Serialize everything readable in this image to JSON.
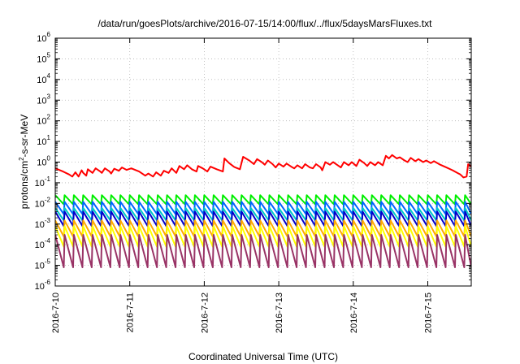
{
  "chart_data": {
    "type": "line",
    "title": "/data/run/goesPlots/archive/2016-07-15/14:00/flux/../flux/5daysMarsFluxes.txt",
    "xlabel": "Coordinated Universal Time (UTC)",
    "ylabel": {
      "prefix": "protons/cm",
      "superscript": "2",
      "suffix": "-s-sr-MeV"
    },
    "y_scale": "log",
    "ylim": [
      1e-06,
      1000000.0
    ],
    "y_ticks": [
      {
        "mantissa": "10",
        "exponent": "-6",
        "value": 1e-06
      },
      {
        "mantissa": "10",
        "exponent": "-5",
        "value": 1e-05
      },
      {
        "mantissa": "10",
        "exponent": "-4",
        "value": 0.0001
      },
      {
        "mantissa": "10",
        "exponent": "-3",
        "value": 0.001
      },
      {
        "mantissa": "10",
        "exponent": "-2",
        "value": 0.01
      },
      {
        "mantissa": "10",
        "exponent": "-1",
        "value": 0.1
      },
      {
        "mantissa": "10",
        "exponent": "0",
        "value": 1
      },
      {
        "mantissa": "10",
        "exponent": "1",
        "value": 10.0
      },
      {
        "mantissa": "10",
        "exponent": "2",
        "value": 100.0
      },
      {
        "mantissa": "10",
        "exponent": "3",
        "value": 1000.0
      },
      {
        "mantissa": "10",
        "exponent": "4",
        "value": 10000.0
      },
      {
        "mantissa": "10",
        "exponent": "5",
        "value": 100000.0
      },
      {
        "mantissa": "10",
        "exponent": "6",
        "value": 1000000.0
      }
    ],
    "x_scale": "time",
    "xlim": [
      "2016-07-10T00:00",
      "2016-07-15T14:00"
    ],
    "x_ticks": [
      {
        "label": "2016-7-10",
        "value": "2016-07-10T00:00"
      },
      {
        "label": "2016-7-11",
        "value": "2016-07-11T00:00"
      },
      {
        "label": "2016-7-12",
        "value": "2016-07-12T00:00"
      },
      {
        "label": "2016-7-13",
        "value": "2016-07-13T00:00"
      },
      {
        "label": "2016-7-14",
        "value": "2016-07-14T00:00"
      },
      {
        "label": "2016-7-15",
        "value": "2016-07-15T00:00"
      }
    ],
    "grid": true,
    "legend": "none",
    "series": [
      {
        "color": "#ff0000",
        "points": [
          [
            "2016-07-10T00:00",
            0.5
          ],
          [
            "2016-07-10T02:30",
            0.35
          ],
          [
            "2016-07-10T04:30",
            0.25
          ],
          [
            "2016-07-10T05:30",
            0.2
          ],
          [
            "2016-07-10T06:30",
            0.32
          ],
          [
            "2016-07-10T07:30",
            0.2
          ],
          [
            "2016-07-10T08:30",
            0.4
          ],
          [
            "2016-07-10T09:00",
            0.3
          ],
          [
            "2016-07-10T10:00",
            0.22
          ],
          [
            "2016-07-10T10:30",
            0.45
          ],
          [
            "2016-07-10T12:00",
            0.3
          ],
          [
            "2016-07-10T13:00",
            0.5
          ],
          [
            "2016-07-10T14:30",
            0.35
          ],
          [
            "2016-07-10T15:00",
            0.3
          ],
          [
            "2016-07-10T16:00",
            0.5
          ],
          [
            "2016-07-10T17:30",
            0.35
          ],
          [
            "2016-07-10T18:00",
            0.28
          ],
          [
            "2016-07-10T19:00",
            0.48
          ],
          [
            "2016-07-10T20:30",
            0.38
          ],
          [
            "2016-07-10T21:30",
            0.55
          ],
          [
            "2016-07-10T23:00",
            0.42
          ],
          [
            "2016-07-11T00:30",
            0.5
          ],
          [
            "2016-07-11T03:00",
            0.35
          ],
          [
            "2016-07-11T05:00",
            0.22
          ],
          [
            "2016-07-11T06:00",
            0.28
          ],
          [
            "2016-07-11T07:30",
            0.2
          ],
          [
            "2016-07-11T08:30",
            0.32
          ],
          [
            "2016-07-11T10:00",
            0.22
          ],
          [
            "2016-07-11T11:00",
            0.38
          ],
          [
            "2016-07-11T12:30",
            0.3
          ],
          [
            "2016-07-11T13:30",
            0.5
          ],
          [
            "2016-07-11T15:00",
            0.3
          ],
          [
            "2016-07-11T16:00",
            0.65
          ],
          [
            "2016-07-11T17:30",
            0.45
          ],
          [
            "2016-07-11T18:30",
            0.7
          ],
          [
            "2016-07-11T20:00",
            0.45
          ],
          [
            "2016-07-11T21:30",
            0.35
          ],
          [
            "2016-07-11T22:00",
            0.65
          ],
          [
            "2016-07-11T23:30",
            0.5
          ],
          [
            "2016-07-12T01:00",
            0.35
          ],
          [
            "2016-07-12T02:00",
            0.6
          ],
          [
            "2016-07-12T04:00",
            0.45
          ],
          [
            "2016-07-12T06:00",
            0.35
          ],
          [
            "2016-07-12T06:30",
            1.5
          ],
          [
            "2016-07-12T08:00",
            0.9
          ],
          [
            "2016-07-12T09:30",
            0.6
          ],
          [
            "2016-07-12T10:00",
            0.55
          ],
          [
            "2016-07-12T11:30",
            0.45
          ],
          [
            "2016-07-12T12:30",
            1.8
          ],
          [
            "2016-07-12T14:30",
            1.2
          ],
          [
            "2016-07-12T16:00",
            0.8
          ],
          [
            "2016-07-12T17:00",
            1.4
          ],
          [
            "2016-07-12T18:30",
            1.0
          ],
          [
            "2016-07-12T19:30",
            0.75
          ],
          [
            "2016-07-12T20:30",
            1.2
          ],
          [
            "2016-07-12T22:00",
            0.8
          ],
          [
            "2016-07-12T23:00",
            0.55
          ],
          [
            "2016-07-13T00:00",
            0.85
          ],
          [
            "2016-07-13T01:30",
            0.6
          ],
          [
            "2016-07-13T02:30",
            0.85
          ],
          [
            "2016-07-13T04:00",
            0.6
          ],
          [
            "2016-07-13T05:00",
            0.5
          ],
          [
            "2016-07-13T06:00",
            0.7
          ],
          [
            "2016-07-13T07:30",
            0.5
          ],
          [
            "2016-07-13T08:30",
            0.8
          ],
          [
            "2016-07-13T10:00",
            0.55
          ],
          [
            "2016-07-13T11:00",
            0.5
          ],
          [
            "2016-07-13T12:00",
            0.8
          ],
          [
            "2016-07-13T13:30",
            0.55
          ],
          [
            "2016-07-13T14:00",
            0.4
          ],
          [
            "2016-07-13T15:00",
            1.0
          ],
          [
            "2016-07-13T16:30",
            0.75
          ],
          [
            "2016-07-13T17:30",
            1.0
          ],
          [
            "2016-07-13T19:00",
            0.7
          ],
          [
            "2016-07-13T20:00",
            0.55
          ],
          [
            "2016-07-13T21:00",
            1.0
          ],
          [
            "2016-07-13T22:30",
            0.7
          ],
          [
            "2016-07-13T23:30",
            1.0
          ],
          [
            "2016-07-14T01:00",
            0.65
          ],
          [
            "2016-07-14T02:00",
            1.3
          ],
          [
            "2016-07-14T03:30",
            0.9
          ],
          [
            "2016-07-14T04:30",
            0.65
          ],
          [
            "2016-07-14T05:30",
            1.0
          ],
          [
            "2016-07-14T07:00",
            0.7
          ],
          [
            "2016-07-14T08:00",
            1.0
          ],
          [
            "2016-07-14T09:30",
            0.7
          ],
          [
            "2016-07-14T10:30",
            2.0
          ],
          [
            "2016-07-14T11:30",
            1.5
          ],
          [
            "2016-07-14T12:30",
            2.2
          ],
          [
            "2016-07-14T14:00",
            1.5
          ],
          [
            "2016-07-14T15:00",
            1.7
          ],
          [
            "2016-07-14T16:30",
            1.2
          ],
          [
            "2016-07-14T17:30",
            1.0
          ],
          [
            "2016-07-14T18:30",
            1.6
          ],
          [
            "2016-07-14T20:00",
            1.1
          ],
          [
            "2016-07-14T21:00",
            1.4
          ],
          [
            "2016-07-14T22:30",
            1.0
          ],
          [
            "2016-07-14T23:30",
            1.2
          ],
          [
            "2016-07-15T01:00",
            0.9
          ],
          [
            "2016-07-15T02:00",
            1.1
          ],
          [
            "2016-07-15T04:00",
            0.75
          ],
          [
            "2016-07-15T06:00",
            0.55
          ],
          [
            "2016-07-15T08:00",
            0.4
          ],
          [
            "2016-07-15T09:30",
            0.3
          ],
          [
            "2016-07-15T10:30",
            0.25
          ],
          [
            "2016-07-15T11:30",
            0.18
          ],
          [
            "2016-07-15T12:30",
            0.2
          ],
          [
            "2016-07-15T13:00",
            0.8
          ],
          [
            "2016-07-15T14:00",
            0.6
          ]
        ]
      },
      {
        "color": "#00ee00",
        "sawtooth": {
          "period_hours": 3,
          "peak": 0.025,
          "trough": 0.009
        }
      },
      {
        "color": "#0066ff",
        "sawtooth": {
          "period_hours": 3,
          "peak": 0.012,
          "trough": 0.003
        }
      },
      {
        "color": "#00c8c8",
        "sawtooth": {
          "period_hours": 3,
          "peak": 0.006,
          "trough": 0.0015
        }
      },
      {
        "color": "#0000cc",
        "sawtooth": {
          "period_hours": 3,
          "peak": 0.004,
          "trough": 0.0008
        }
      },
      {
        "color": "#ffaa00",
        "sawtooth": {
          "period_hours": 3,
          "peak": 0.0015,
          "trough": 0.00025
        }
      },
      {
        "color": "#ffff00",
        "sawtooth": {
          "period_hours": 3,
          "peak": 0.0008,
          "trough": 8e-05
        }
      },
      {
        "color": "#993366",
        "sawtooth": {
          "period_hours": 3,
          "peak": 0.0003,
          "trough": 8e-06
        }
      }
    ]
  }
}
